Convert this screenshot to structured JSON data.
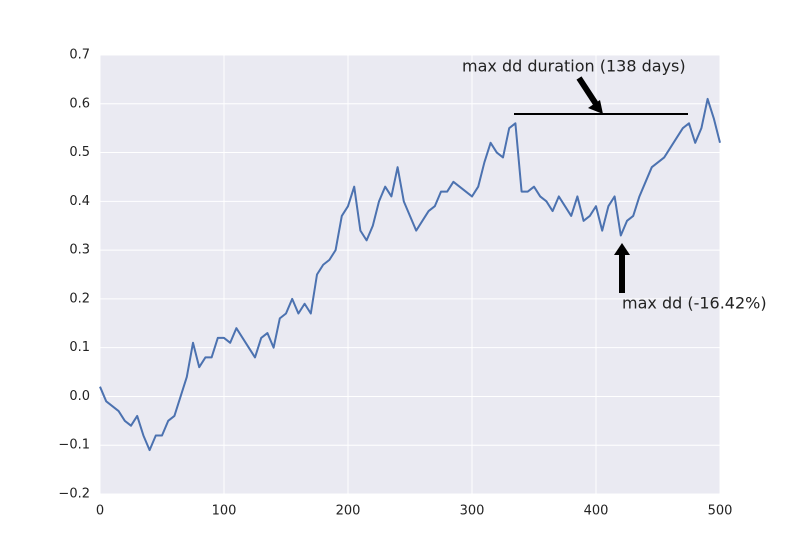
{
  "chart_data": {
    "type": "line",
    "x": [
      0,
      5,
      10,
      15,
      20,
      25,
      30,
      35,
      40,
      45,
      50,
      55,
      60,
      65,
      70,
      75,
      80,
      85,
      90,
      95,
      100,
      105,
      110,
      115,
      120,
      125,
      130,
      135,
      140,
      145,
      150,
      155,
      160,
      165,
      170,
      175,
      180,
      185,
      190,
      195,
      200,
      205,
      210,
      215,
      220,
      225,
      230,
      235,
      240,
      245,
      250,
      255,
      260,
      265,
      270,
      275,
      280,
      285,
      290,
      295,
      300,
      305,
      310,
      315,
      320,
      325,
      330,
      335,
      340,
      345,
      350,
      355,
      360,
      365,
      370,
      375,
      380,
      385,
      390,
      395,
      400,
      405,
      410,
      415,
      420,
      425,
      430,
      435,
      440,
      445,
      450,
      455,
      460,
      465,
      470,
      475,
      480,
      485,
      490,
      495,
      500
    ],
    "series": [
      {
        "color": "#4c72b0",
        "values": [
          0.02,
          -0.01,
          -0.02,
          -0.03,
          -0.05,
          -0.06,
          -0.04,
          -0.08,
          -0.11,
          -0.08,
          -0.08,
          -0.05,
          -0.04,
          0.0,
          0.04,
          0.11,
          0.06,
          0.08,
          0.08,
          0.12,
          0.12,
          0.11,
          0.14,
          0.12,
          0.1,
          0.08,
          0.12,
          0.13,
          0.1,
          0.16,
          0.17,
          0.2,
          0.17,
          0.19,
          0.17,
          0.25,
          0.27,
          0.28,
          0.3,
          0.37,
          0.39,
          0.43,
          0.34,
          0.32,
          0.35,
          0.4,
          0.43,
          0.41,
          0.47,
          0.4,
          0.37,
          0.34,
          0.36,
          0.38,
          0.39,
          0.42,
          0.42,
          0.44,
          0.43,
          0.42,
          0.41,
          0.43,
          0.48,
          0.52,
          0.5,
          0.49,
          0.55,
          0.56,
          0.42,
          0.42,
          0.43,
          0.41,
          0.4,
          0.38,
          0.41,
          0.39,
          0.37,
          0.41,
          0.36,
          0.37,
          0.39,
          0.34,
          0.39,
          0.41,
          0.33,
          0.36,
          0.37,
          0.41,
          0.44,
          0.47,
          0.48,
          0.49,
          0.51,
          0.53,
          0.55,
          0.56,
          0.52,
          0.55,
          0.61,
          0.57,
          0.52
        ]
      }
    ],
    "xlim": [
      0,
      500
    ],
    "xticks": [
      0,
      100,
      200,
      300,
      400,
      500
    ],
    "ylim": [
      -0.2,
      0.7
    ],
    "yticks": [
      {
        "value": -0.2,
        "label": "−0.2"
      },
      {
        "value": -0.1,
        "label": "−0.1"
      },
      {
        "value": 0,
        "label": "0.0"
      },
      {
        "value": 0.1,
        "label": "0.1"
      },
      {
        "value": 0.2,
        "label": "0.2"
      },
      {
        "value": 0.3,
        "label": "0.3"
      },
      {
        "value": 0.4,
        "label": "0.4"
      },
      {
        "value": 0.5,
        "label": "0.5"
      },
      {
        "value": 0.6,
        "label": "0.6"
      },
      {
        "value": 0.7,
        "label": "0.7"
      }
    ],
    "grid": true,
    "annotations": [
      "max dd duration (138 days)",
      "max dd (-16.42%)"
    ]
  }
}
